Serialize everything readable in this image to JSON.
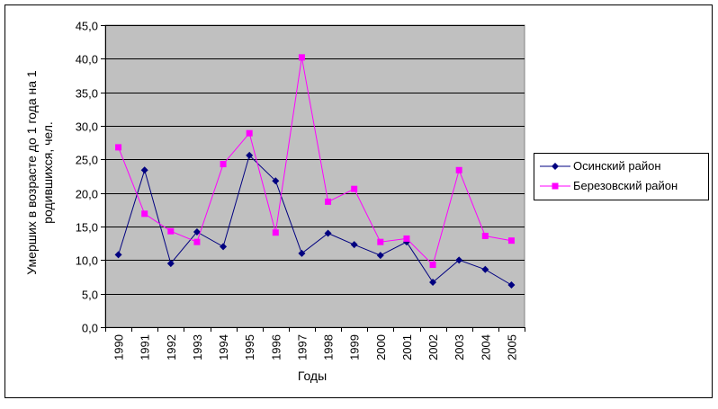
{
  "chart_data": {
    "type": "line",
    "title": "",
    "xlabel": "Годы",
    "ylabel_line1": "Умерших в возрасте до 1 года на 1",
    "ylabel_line2": "родившихся, чел.",
    "ylim": [
      0,
      45
    ],
    "y_ticks": [
      "0,0",
      "5,0",
      "10,0",
      "15,0",
      "20,0",
      "25,0",
      "30,0",
      "35,0",
      "40,0",
      "45,0"
    ],
    "grid": true,
    "plot_background": "#c0c0c0",
    "legend_position": "right",
    "categories": [
      "1990",
      "1991",
      "1992",
      "1993",
      "1994",
      "1995",
      "1996",
      "1997",
      "1998",
      "1999",
      "2000",
      "2001",
      "2002",
      "2003",
      "2004",
      "2005"
    ],
    "series": [
      {
        "name": "Осинский район",
        "color": "#000080",
        "marker": "diamond",
        "values": [
          10.8,
          23.4,
          9.5,
          14.2,
          12.0,
          25.6,
          21.8,
          11.0,
          14.0,
          12.3,
          10.7,
          12.7,
          6.7,
          10.0,
          8.6,
          6.3
        ]
      },
      {
        "name": "Березовский район",
        "color": "#ff00ff",
        "marker": "square",
        "values": [
          26.8,
          16.9,
          14.3,
          12.7,
          24.3,
          28.9,
          14.1,
          40.2,
          18.7,
          20.6,
          12.7,
          13.2,
          9.3,
          23.4,
          13.6,
          12.9
        ]
      }
    ]
  }
}
